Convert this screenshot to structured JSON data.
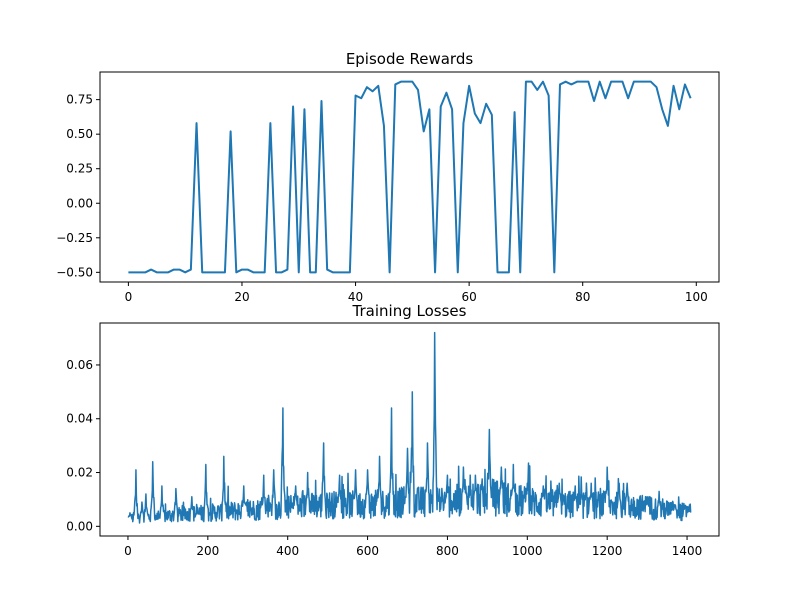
{
  "chart_data": [
    {
      "type": "line",
      "title": "Episode Rewards",
      "xlabel": "",
      "ylabel": "",
      "xlim": [
        -5,
        104
      ],
      "ylim": [
        -0.57,
        0.95
      ],
      "x_ticks": [
        0,
        20,
        40,
        60,
        80,
        100
      ],
      "x_tick_labels": [
        "0",
        "20",
        "40",
        "60",
        "80",
        "100"
      ],
      "y_ticks": [
        -0.5,
        -0.25,
        0.0,
        0.25,
        0.5,
        0.75
      ],
      "y_tick_labels": [
        "−0.50",
        "−0.25",
        "0.00",
        "0.25",
        "0.50",
        "0.75"
      ],
      "grid": false,
      "color": "#1f77b4",
      "series": [
        {
          "x": [
            0,
            1,
            2,
            3,
            4,
            5,
            6,
            7,
            8,
            9,
            10,
            11,
            12,
            13,
            14,
            15,
            16,
            17,
            18,
            19,
            20,
            21,
            22,
            23,
            24,
            25,
            26,
            27,
            28,
            29,
            30,
            31,
            32,
            33,
            34,
            35,
            36,
            37,
            38,
            39,
            40,
            41,
            42,
            43,
            44,
            45,
            46,
            47,
            48,
            49,
            50,
            51,
            52,
            53,
            54,
            55,
            56,
            57,
            58,
            59,
            60,
            61,
            62,
            63,
            64,
            65,
            66,
            67,
            68,
            69,
            70,
            71,
            72,
            73,
            74,
            75,
            76,
            77,
            78,
            79,
            80,
            81,
            82,
            83,
            84,
            85,
            86,
            87,
            88,
            89,
            90,
            91,
            92,
            93,
            94,
            95,
            96,
            97,
            98,
            99
          ],
          "values": [
            -0.5,
            -0.5,
            -0.5,
            -0.5,
            -0.48,
            -0.5,
            -0.5,
            -0.5,
            -0.48,
            -0.48,
            -0.5,
            -0.48,
            0.58,
            -0.5,
            -0.5,
            -0.5,
            -0.5,
            -0.5,
            0.52,
            -0.5,
            -0.48,
            -0.48,
            -0.5,
            -0.5,
            -0.5,
            0.58,
            -0.5,
            -0.5,
            -0.48,
            0.7,
            -0.5,
            0.68,
            -0.5,
            -0.5,
            0.74,
            -0.48,
            -0.5,
            -0.5,
            -0.5,
            -0.5,
            0.78,
            0.76,
            0.84,
            0.81,
            0.85,
            0.56,
            -0.5,
            0.86,
            0.88,
            0.88,
            0.88,
            0.82,
            0.52,
            0.68,
            -0.5,
            0.7,
            0.8,
            0.68,
            -0.5,
            0.58,
            0.85,
            0.65,
            0.58,
            0.72,
            0.64,
            -0.5,
            -0.5,
            -0.5,
            0.66,
            -0.5,
            0.88,
            0.88,
            0.82,
            0.88,
            0.78,
            -0.5,
            0.86,
            0.88,
            0.86,
            0.88,
            0.88,
            0.88,
            0.74,
            0.88,
            0.76,
            0.88,
            0.88,
            0.88,
            0.76,
            0.88,
            0.88,
            0.88,
            0.88,
            0.84,
            0.68,
            0.56,
            0.85,
            0.68,
            0.86,
            0.76
          ]
        }
      ]
    },
    {
      "type": "line",
      "title": "Training Losses",
      "xlabel": "",
      "ylabel": "",
      "xlim": [
        -70,
        1480
      ],
      "ylim": [
        -0.0036,
        0.0756
      ],
      "x_ticks": [
        0,
        200,
        400,
        600,
        800,
        1000,
        1200,
        1400
      ],
      "x_tick_labels": [
        "0",
        "200",
        "400",
        "600",
        "800",
        "1000",
        "1200",
        "1400"
      ],
      "y_ticks": [
        0.0,
        0.02,
        0.04,
        0.06
      ],
      "y_tick_labels": [
        "0.00",
        "0.02",
        "0.04",
        "0.06"
      ],
      "grid": false,
      "color": "#1f77b4",
      "n_points": 1410,
      "baseline": [
        [
          0,
          0.003
        ],
        [
          100,
          0.004
        ],
        [
          200,
          0.005
        ],
        [
          300,
          0.006
        ],
        [
          400,
          0.007
        ],
        [
          500,
          0.008
        ],
        [
          600,
          0.008
        ],
        [
          700,
          0.009
        ],
        [
          800,
          0.009
        ],
        [
          900,
          0.011
        ],
        [
          1000,
          0.009
        ],
        [
          1100,
          0.008
        ],
        [
          1200,
          0.008
        ],
        [
          1300,
          0.007
        ],
        [
          1408,
          0.005
        ]
      ],
      "peaks": [
        [
          5,
          0.005
        ],
        [
          20,
          0.021
        ],
        [
          35,
          0.009
        ],
        [
          45,
          0.012
        ],
        [
          62,
          0.024
        ],
        [
          85,
          0.015
        ],
        [
          120,
          0.014
        ],
        [
          160,
          0.011
        ],
        [
          195,
          0.023
        ],
        [
          240,
          0.026
        ],
        [
          290,
          0.015
        ],
        [
          340,
          0.019
        ],
        [
          365,
          0.021
        ],
        [
          388,
          0.044
        ],
        [
          420,
          0.015
        ],
        [
          450,
          0.02
        ],
        [
          490,
          0.031
        ],
        [
          530,
          0.019
        ],
        [
          570,
          0.021
        ],
        [
          600,
          0.021
        ],
        [
          630,
          0.026
        ],
        [
          660,
          0.044
        ],
        [
          700,
          0.029
        ],
        [
          712,
          0.05
        ],
        [
          750,
          0.031
        ],
        [
          768,
          0.072
        ],
        [
          800,
          0.019
        ],
        [
          840,
          0.022
        ],
        [
          870,
          0.019
        ],
        [
          905,
          0.036
        ],
        [
          935,
          0.022
        ],
        [
          965,
          0.023
        ],
        [
          1000,
          0.016
        ],
        [
          1040,
          0.015
        ],
        [
          1080,
          0.016
        ],
        [
          1120,
          0.015
        ],
        [
          1160,
          0.016
        ],
        [
          1200,
          0.022
        ],
        [
          1230,
          0.016
        ],
        [
          1250,
          0.016
        ],
        [
          1300,
          0.011
        ],
        [
          1330,
          0.013
        ],
        [
          1370,
          0.008
        ],
        [
          1405,
          0.006
        ]
      ]
    }
  ]
}
